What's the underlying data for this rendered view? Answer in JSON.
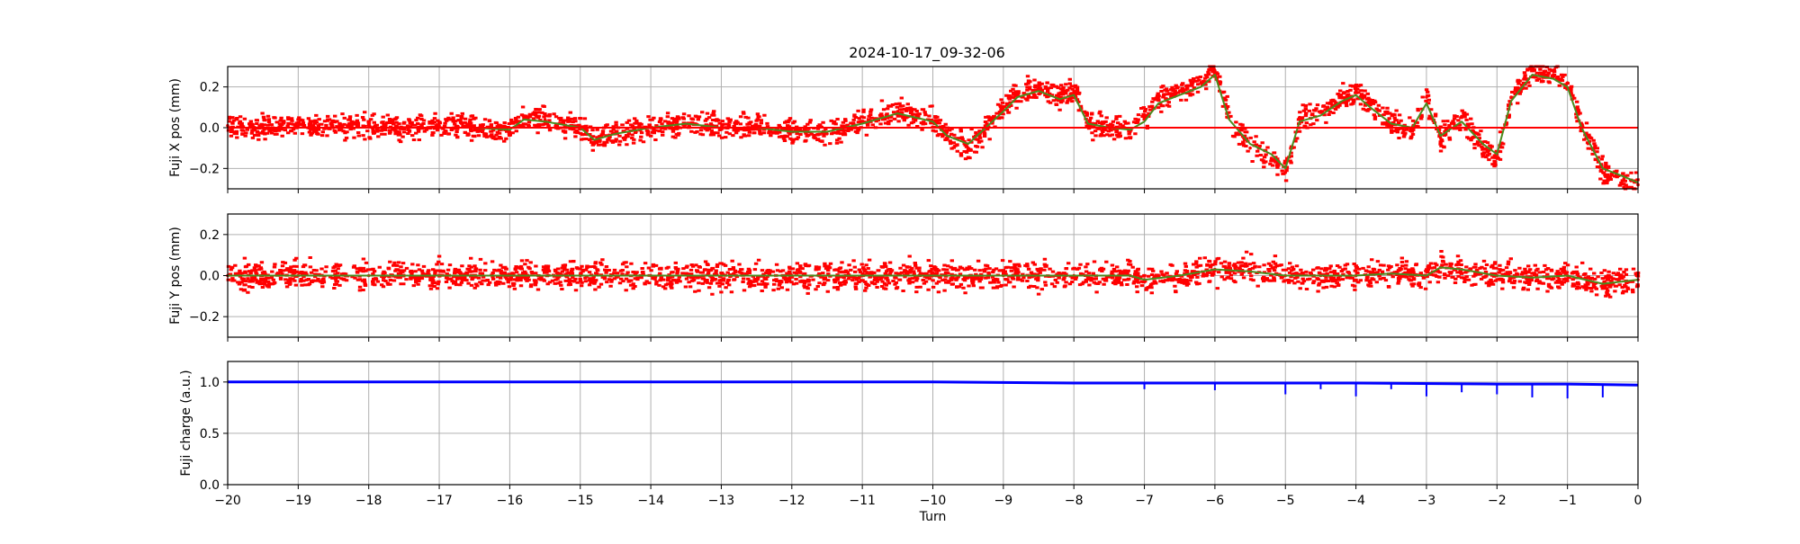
{
  "title": "2024-10-17_09-32-06",
  "chart_data": [
    {
      "type": "scatter",
      "ylabel": "Fuji X pos (mm)",
      "ylim": [
        -0.3,
        0.3
      ],
      "yticks": [
        -0.2,
        0.0,
        0.2
      ],
      "ytick_labels": [
        "−0.2",
        "0.0",
        "0.2"
      ],
      "xlim": [
        -20,
        0
      ],
      "grid": true,
      "series": [
        {
          "style": "points",
          "color": "#ff0000",
          "x": [
            -20,
            -19.5,
            -19,
            -18.5,
            -18,
            -17.5,
            -17,
            -16.5,
            -16,
            -15.8,
            -15.5,
            -15,
            -14.8,
            -14.5,
            -14,
            -13.5,
            -13,
            -12.5,
            -12,
            -11.5,
            -11,
            -10.5,
            -10,
            -9.8,
            -9.5,
            -9,
            -8.8,
            -8.5,
            -8.2,
            -8,
            -7.8,
            -7.5,
            -7.2,
            -7,
            -6.8,
            -6.5,
            -6.2,
            -6,
            -5.8,
            -5.5,
            -5.2,
            -5,
            -4.8,
            -4.5,
            -4.2,
            -4,
            -3.8,
            -3.5,
            -3.2,
            -3,
            -2.8,
            -2.5,
            -2.2,
            -2,
            -1.8,
            -1.5,
            -1.2,
            -1,
            -0.8,
            -0.5,
            -0.2,
            0
          ],
          "y": [
            0.01,
            0.0,
            0.01,
            0.0,
            0.01,
            0.0,
            0.01,
            0.0,
            -0.02,
            0.05,
            0.04,
            0.0,
            -0.08,
            -0.03,
            0.0,
            0.02,
            0.0,
            0.01,
            -0.02,
            -0.03,
            0.03,
            0.08,
            0.03,
            -0.05,
            -0.1,
            0.1,
            0.17,
            0.2,
            0.15,
            0.18,
            0.02,
            0.0,
            -0.02,
            0.05,
            0.15,
            0.18,
            0.22,
            0.28,
            0.05,
            -0.1,
            -0.15,
            -0.22,
            0.05,
            0.08,
            0.15,
            0.18,
            0.12,
            0.02,
            0.0,
            0.15,
            -0.05,
            0.05,
            -0.1,
            -0.15,
            0.15,
            0.28,
            0.26,
            0.22,
            0.0,
            -0.22,
            -0.25,
            -0.28
          ]
        },
        {
          "style": "line",
          "color": "#4a8a1e",
          "x": [
            -20,
            -19.5,
            -19,
            -18.5,
            -18,
            -17.5,
            -17,
            -16.5,
            -16,
            -15.8,
            -15.5,
            -15,
            -14.8,
            -14.5,
            -14,
            -13.5,
            -13,
            -12.5,
            -12,
            -11.5,
            -11,
            -10.5,
            -10,
            -9.8,
            -9.5,
            -9,
            -8.8,
            -8.5,
            -8.2,
            -8,
            -7.8,
            -7.5,
            -7.2,
            -7,
            -6.8,
            -6.5,
            -6.2,
            -6,
            -5.8,
            -5.5,
            -5.2,
            -5,
            -4.8,
            -4.5,
            -4.2,
            -4,
            -3.8,
            -3.5,
            -3.2,
            -3,
            -2.8,
            -2.5,
            -2.2,
            -2,
            -1.8,
            -1.5,
            -1.2,
            -1,
            -0.8,
            -0.5,
            -0.2,
            0
          ],
          "y": [
            0.0,
            0.0,
            0.0,
            0.0,
            0.0,
            0.0,
            0.0,
            0.0,
            -0.01,
            0.04,
            0.03,
            0.0,
            -0.06,
            -0.03,
            0.0,
            0.02,
            0.0,
            0.0,
            -0.02,
            -0.02,
            0.02,
            0.07,
            0.03,
            -0.04,
            -0.08,
            0.08,
            0.15,
            0.18,
            0.14,
            0.16,
            0.02,
            0.0,
            -0.01,
            0.03,
            0.12,
            0.16,
            0.2,
            0.26,
            0.04,
            -0.08,
            -0.13,
            -0.2,
            0.03,
            0.06,
            0.13,
            0.16,
            0.1,
            0.02,
            0.0,
            0.12,
            -0.04,
            0.03,
            -0.08,
            -0.13,
            0.13,
            0.26,
            0.24,
            0.2,
            0.0,
            -0.2,
            -0.24,
            -0.27
          ]
        },
        {
          "style": "hline",
          "color": "#ff0000",
          "y": 0.0
        }
      ]
    },
    {
      "type": "scatter",
      "ylabel": "Fuji Y pos (mm)",
      "ylim": [
        -0.3,
        0.3
      ],
      "yticks": [
        -0.2,
        0.0,
        0.2
      ],
      "ytick_labels": [
        "−0.2",
        "0.0",
        "0.2"
      ],
      "xlim": [
        -20,
        0
      ],
      "grid": true,
      "series": [
        {
          "style": "points",
          "color": "#ff0000",
          "x": [
            -20,
            -19,
            -18,
            -17,
            -16,
            -15,
            -14,
            -13,
            -12,
            -11,
            -10,
            -9,
            -8,
            -7.2,
            -7,
            -6.5,
            -6,
            -5.5,
            -5,
            -4.5,
            -4,
            -3.5,
            -3,
            -2.8,
            -2.5,
            -2,
            -1.5,
            -1,
            -0.5,
            0
          ],
          "y": [
            0.0,
            0.0,
            0.0,
            0.0,
            0.0,
            0.0,
            0.0,
            0.0,
            0.0,
            0.0,
            0.0,
            0.0,
            0.0,
            0.0,
            -0.02,
            0.0,
            0.03,
            0.03,
            0.0,
            0.0,
            0.0,
            0.01,
            0.0,
            0.04,
            0.03,
            0.0,
            -0.01,
            0.0,
            -0.04,
            -0.02
          ]
        },
        {
          "style": "line",
          "color": "#4a8a1e",
          "x": [
            -20,
            -19,
            -18,
            -17,
            -16,
            -15,
            -14,
            -13,
            -12,
            -11,
            -10,
            -9,
            -8,
            -7.2,
            -7,
            -6.5,
            -6,
            -5.5,
            -5,
            -4.5,
            -4,
            -3.5,
            -3,
            -2.8,
            -2.5,
            -2,
            -1.5,
            -1,
            -0.5,
            0
          ],
          "y": [
            0.0,
            0.0,
            0.0,
            0.0,
            0.0,
            0.0,
            0.0,
            0.0,
            0.0,
            0.0,
            0.0,
            0.0,
            0.0,
            0.0,
            -0.02,
            0.0,
            0.03,
            0.02,
            0.0,
            0.0,
            0.0,
            0.01,
            0.0,
            0.04,
            0.03,
            0.0,
            -0.01,
            0.0,
            -0.04,
            -0.02
          ]
        }
      ]
    },
    {
      "type": "scatter",
      "ylabel": "Fuji charge (a.u.)",
      "xlabel": "Turn",
      "ylim": [
        0.0,
        1.2
      ],
      "yticks": [
        0.0,
        0.5,
        1.0
      ],
      "ytick_labels": [
        "0.0",
        "0.5",
        "1.0"
      ],
      "xlim": [
        -20,
        0
      ],
      "xticks": [
        -20,
        -19,
        -18,
        -17,
        -16,
        -15,
        -14,
        -13,
        -12,
        -11,
        -10,
        -9,
        -8,
        -7,
        -6,
        -5,
        -4,
        -3,
        -2,
        -1,
        0
      ],
      "xtick_labels": [
        "−20",
        "−19",
        "−18",
        "−17",
        "−16",
        "−15",
        "−14",
        "−13",
        "−12",
        "−11",
        "−10",
        "−9",
        "−8",
        "−7",
        "−6",
        "−5",
        "−4",
        "−3",
        "−2",
        "−1",
        "0"
      ],
      "grid": true,
      "series": [
        {
          "style": "line",
          "color": "#0000ff",
          "x": [
            -20,
            -15,
            -10,
            -8,
            -6,
            -4,
            -2,
            -1,
            0
          ],
          "y": [
            1.0,
            1.0,
            1.0,
            0.99,
            0.99,
            0.99,
            0.98,
            0.98,
            0.97
          ]
        },
        {
          "style": "dips",
          "color": "#0000ff",
          "x": [
            -7,
            -6,
            -5,
            -4.5,
            -4,
            -3.5,
            -3,
            -2.5,
            -2,
            -1.5,
            -1,
            -0.5
          ],
          "y": [
            0.93,
            0.92,
            0.88,
            0.93,
            0.86,
            0.93,
            0.86,
            0.9,
            0.88,
            0.85,
            0.84,
            0.85
          ]
        }
      ]
    }
  ]
}
